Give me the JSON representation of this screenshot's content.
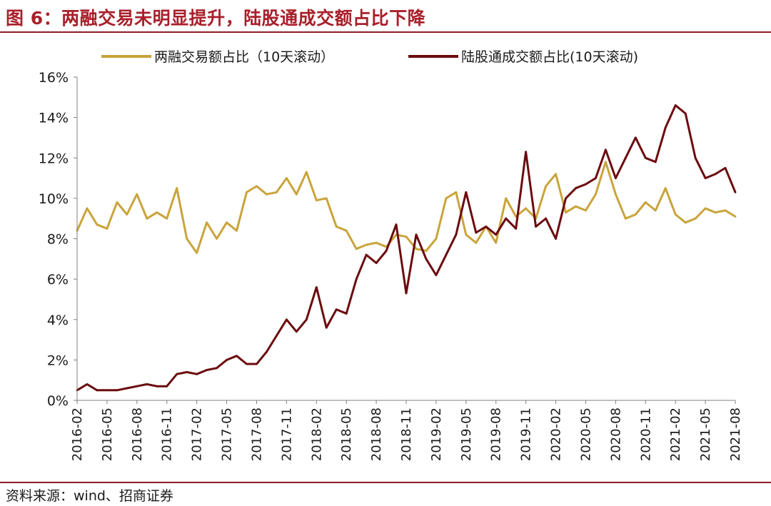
{
  "header": {
    "title": "图 6：两融交易未明显提升，陆股通成交额占比下降"
  },
  "footer": {
    "source": "资料来源：wind、招商证券"
  },
  "chart_data": {
    "type": "line",
    "title": "",
    "xlabel": "",
    "ylabel": "",
    "y_unit": "%",
    "ylim": [
      0,
      16
    ],
    "y_ticks": [
      "0%",
      "2%",
      "4%",
      "6%",
      "8%",
      "10%",
      "12%",
      "14%",
      "16%"
    ],
    "x_ticks": [
      "2016-02",
      "2016-05",
      "2016-08",
      "2016-11",
      "2017-02",
      "2017-05",
      "2017-08",
      "2017-11",
      "2018-02",
      "2018-05",
      "2018-08",
      "2018-11",
      "2019-02",
      "2019-05",
      "2019-08",
      "2019-11",
      "2020-02",
      "2020-05",
      "2020-08",
      "2020-11",
      "2021-02",
      "2021-05",
      "2021-08"
    ],
    "xlim": [
      "2016-02",
      "2021-08"
    ],
    "grid": false,
    "legend_position": "top",
    "series": [
      {
        "name": "两融交易额占比（10天滚动）",
        "color": "#c9a43c",
        "points": [
          [
            "2016-02",
            8.4
          ],
          [
            "2016-03",
            9.5
          ],
          [
            "2016-04",
            8.7
          ],
          [
            "2016-05",
            8.5
          ],
          [
            "2016-06",
            9.8
          ],
          [
            "2016-07",
            9.2
          ],
          [
            "2016-08",
            10.2
          ],
          [
            "2016-09",
            9.0
          ],
          [
            "2016-10",
            9.3
          ],
          [
            "2016-11",
            9.0
          ],
          [
            "2016-12",
            10.5
          ],
          [
            "2017-01",
            8.0
          ],
          [
            "2017-02",
            7.3
          ],
          [
            "2017-03",
            8.8
          ],
          [
            "2017-04",
            8.0
          ],
          [
            "2017-05",
            8.8
          ],
          [
            "2017-06",
            8.4
          ],
          [
            "2017-07",
            10.3
          ],
          [
            "2017-08",
            10.6
          ],
          [
            "2017-09",
            10.2
          ],
          [
            "2017-10",
            10.3
          ],
          [
            "2017-11",
            11.0
          ],
          [
            "2017-12",
            10.2
          ],
          [
            "2018-01",
            11.3
          ],
          [
            "2018-02",
            9.9
          ],
          [
            "2018-03",
            10.0
          ],
          [
            "2018-04",
            8.6
          ],
          [
            "2018-05",
            8.4
          ],
          [
            "2018-06",
            7.5
          ],
          [
            "2018-07",
            7.7
          ],
          [
            "2018-08",
            7.8
          ],
          [
            "2018-09",
            7.6
          ],
          [
            "2018-10",
            8.2
          ],
          [
            "2018-11",
            8.1
          ],
          [
            "2018-12",
            7.5
          ],
          [
            "2019-01",
            7.4
          ],
          [
            "2019-02",
            8.0
          ],
          [
            "2019-03",
            10.0
          ],
          [
            "2019-04",
            10.3
          ],
          [
            "2019-05",
            8.2
          ],
          [
            "2019-06",
            7.8
          ],
          [
            "2019-07",
            8.6
          ],
          [
            "2019-08",
            7.8
          ],
          [
            "2019-09",
            10.0
          ],
          [
            "2019-10",
            9.1
          ],
          [
            "2019-11",
            9.5
          ],
          [
            "2019-12",
            9.0
          ],
          [
            "2020-01",
            10.6
          ],
          [
            "2020-02",
            11.2
          ],
          [
            "2020-03",
            9.3
          ],
          [
            "2020-04",
            9.6
          ],
          [
            "2020-05",
            9.4
          ],
          [
            "2020-06",
            10.2
          ],
          [
            "2020-07",
            11.8
          ],
          [
            "2020-08",
            10.2
          ],
          [
            "2020-09",
            9.0
          ],
          [
            "2020-10",
            9.2
          ],
          [
            "2020-11",
            9.8
          ],
          [
            "2020-12",
            9.4
          ],
          [
            "2021-01",
            10.5
          ],
          [
            "2021-02",
            9.2
          ],
          [
            "2021-03",
            8.8
          ],
          [
            "2021-04",
            9.0
          ],
          [
            "2021-05",
            9.5
          ],
          [
            "2021-06",
            9.3
          ],
          [
            "2021-07",
            9.4
          ],
          [
            "2021-08",
            9.1
          ]
        ]
      },
      {
        "name": "陆股通成交额占比(10天滚动)",
        "color": "#6b0b0f",
        "points": [
          [
            "2016-02",
            0.5
          ],
          [
            "2016-03",
            0.8
          ],
          [
            "2016-04",
            0.5
          ],
          [
            "2016-05",
            0.5
          ],
          [
            "2016-06",
            0.5
          ],
          [
            "2016-07",
            0.6
          ],
          [
            "2016-08",
            0.7
          ],
          [
            "2016-09",
            0.8
          ],
          [
            "2016-10",
            0.7
          ],
          [
            "2016-11",
            0.7
          ],
          [
            "2016-12",
            1.3
          ],
          [
            "2017-01",
            1.4
          ],
          [
            "2017-02",
            1.3
          ],
          [
            "2017-03",
            1.5
          ],
          [
            "2017-04",
            1.6
          ],
          [
            "2017-05",
            2.0
          ],
          [
            "2017-06",
            2.2
          ],
          [
            "2017-07",
            1.8
          ],
          [
            "2017-08",
            1.8
          ],
          [
            "2017-09",
            2.4
          ],
          [
            "2017-10",
            3.2
          ],
          [
            "2017-11",
            4.0
          ],
          [
            "2017-12",
            3.4
          ],
          [
            "2018-01",
            4.0
          ],
          [
            "2018-02",
            5.6
          ],
          [
            "2018-03",
            3.6
          ],
          [
            "2018-04",
            4.5
          ],
          [
            "2018-05",
            4.3
          ],
          [
            "2018-06",
            6.0
          ],
          [
            "2018-07",
            7.2
          ],
          [
            "2018-08",
            6.8
          ],
          [
            "2018-09",
            7.4
          ],
          [
            "2018-10",
            8.7
          ],
          [
            "2018-11",
            5.3
          ],
          [
            "2018-12",
            8.2
          ],
          [
            "2019-01",
            7.0
          ],
          [
            "2019-02",
            6.2
          ],
          [
            "2019-03",
            7.2
          ],
          [
            "2019-04",
            8.2
          ],
          [
            "2019-05",
            10.3
          ],
          [
            "2019-06",
            8.3
          ],
          [
            "2019-07",
            8.6
          ],
          [
            "2019-08",
            8.2
          ],
          [
            "2019-09",
            9.0
          ],
          [
            "2019-10",
            8.5
          ],
          [
            "2019-11",
            12.3
          ],
          [
            "2019-12",
            8.6
          ],
          [
            "2020-01",
            9.0
          ],
          [
            "2020-02",
            8.0
          ],
          [
            "2020-03",
            10.0
          ],
          [
            "2020-04",
            10.5
          ],
          [
            "2020-05",
            10.7
          ],
          [
            "2020-06",
            11.0
          ],
          [
            "2020-07",
            12.4
          ],
          [
            "2020-08",
            11.0
          ],
          [
            "2020-09",
            12.0
          ],
          [
            "2020-10",
            13.0
          ],
          [
            "2020-11",
            12.0
          ],
          [
            "2020-12",
            11.8
          ],
          [
            "2021-01",
            13.5
          ],
          [
            "2021-02",
            14.6
          ],
          [
            "2021-03",
            14.2
          ],
          [
            "2021-04",
            12.0
          ],
          [
            "2021-05",
            11.0
          ],
          [
            "2021-06",
            11.2
          ],
          [
            "2021-07",
            11.5
          ],
          [
            "2021-08",
            10.3
          ]
        ]
      }
    ]
  }
}
